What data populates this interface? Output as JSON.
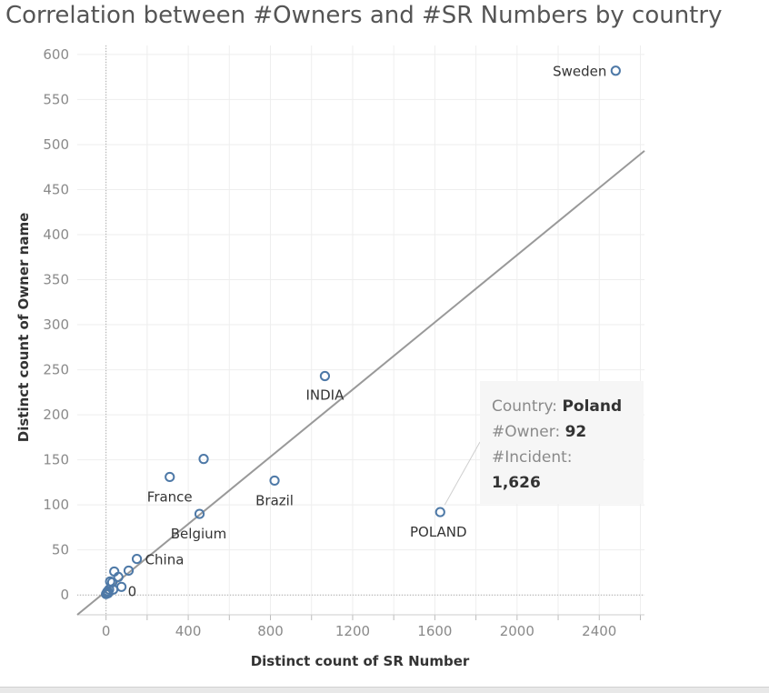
{
  "chart_data": {
    "type": "scatter",
    "title": "Correlation between #Owners and #SR Numbers by country",
    "xlabel": "Distinct count of SR Number",
    "ylabel": "Distinct count of Owner name",
    "xlim": [
      -140,
      2620
    ],
    "ylim": [
      -22,
      610
    ],
    "x_ticks": [
      0,
      400,
      800,
      1200,
      1600,
      2000,
      2400
    ],
    "y_ticks": [
      0,
      50,
      100,
      150,
      200,
      250,
      300,
      350,
      400,
      450,
      500,
      550,
      600
    ],
    "grid": true,
    "point_color": "#4e79a7",
    "trend_color": "#999999",
    "trend_line": {
      "x": [
        -140,
        2620
      ],
      "y": [
        -22,
        493
      ]
    },
    "points": [
      {
        "x": 2480,
        "y": 582,
        "label": "Sweden"
      },
      {
        "x": 1065,
        "y": 243,
        "label": "INDIA"
      },
      {
        "x": 1626,
        "y": 92,
        "label": "POLAND"
      },
      {
        "x": 820,
        "y": 127,
        "label": "Brazil"
      },
      {
        "x": 475,
        "y": 151,
        "label": ""
      },
      {
        "x": 310,
        "y": 131,
        "label": "France"
      },
      {
        "x": 455,
        "y": 90,
        "label": "Belgium"
      },
      {
        "x": 150,
        "y": 40,
        "label": "China"
      },
      {
        "x": 110,
        "y": 27,
        "label": ""
      },
      {
        "x": 60,
        "y": 20,
        "label": ""
      },
      {
        "x": 40,
        "y": 26,
        "label": ""
      },
      {
        "x": 30,
        "y": 14,
        "label": ""
      },
      {
        "x": 20,
        "y": 15,
        "label": ""
      },
      {
        "x": 75,
        "y": 9,
        "label": "0"
      },
      {
        "x": 35,
        "y": 6,
        "label": ""
      },
      {
        "x": 15,
        "y": 6,
        "label": ""
      },
      {
        "x": 8,
        "y": 4,
        "label": ""
      },
      {
        "x": 3,
        "y": 2,
        "label": ""
      },
      {
        "x": 5,
        "y": 3,
        "label": ""
      },
      {
        "x": 0,
        "y": 1,
        "label": ""
      },
      {
        "x": 10,
        "y": 2,
        "label": ""
      }
    ]
  },
  "tooltip": {
    "country_key": "Country:",
    "country_value": "Poland",
    "owner_key": "#Owner:",
    "owner_value": "92",
    "incident_key": "#Incident:",
    "incident_value": "1,626"
  }
}
